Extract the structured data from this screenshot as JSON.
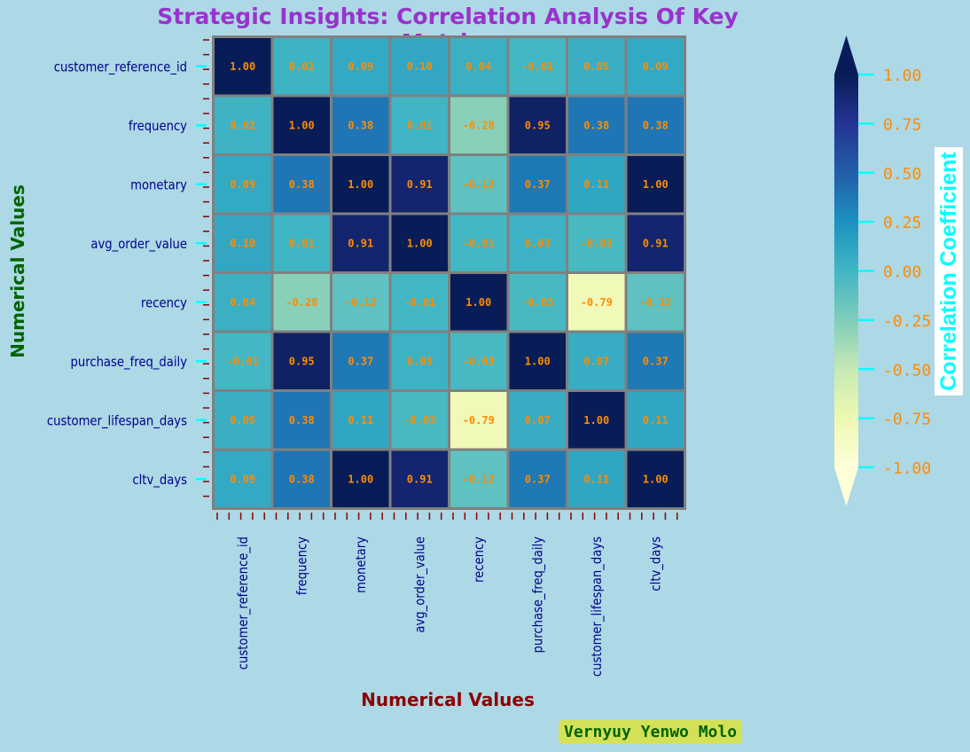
{
  "chart_data": {
    "type": "heatmap",
    "title": "Strategic Insights: Correlation Analysis Of Key Metrics",
    "xlabel": "Numerical Values",
    "ylabel": "Numerical Values",
    "categories": [
      "customer_reference_id",
      "frequency",
      "monetary",
      "avg_order_value",
      "recency",
      "purchase_freq_daily",
      "customer_lifespan_days",
      "cltv_days"
    ],
    "matrix": [
      [
        1.0,
        0.02,
        0.09,
        0.1,
        0.04,
        -0.01,
        0.05,
        0.09
      ],
      [
        0.02,
        1.0,
        0.38,
        0.01,
        -0.28,
        0.95,
        0.38,
        0.38
      ],
      [
        0.09,
        0.38,
        1.0,
        0.91,
        -0.12,
        0.37,
        0.11,
        1.0
      ],
      [
        0.1,
        0.01,
        0.91,
        1.0,
        -0.01,
        0.03,
        -0.03,
        0.91
      ],
      [
        0.04,
        -0.28,
        -0.12,
        -0.01,
        1.0,
        -0.03,
        -0.79,
        -0.12
      ],
      [
        -0.01,
        0.95,
        0.37,
        0.03,
        -0.03,
        1.0,
        0.07,
        0.37
      ],
      [
        0.05,
        0.38,
        0.11,
        -0.03,
        -0.79,
        0.07,
        1.0,
        0.11
      ],
      [
        0.09,
        0.38,
        1.0,
        0.91,
        -0.12,
        0.37,
        0.11,
        1.0
      ]
    ],
    "colorbar": {
      "label": "Correlation Coefficient",
      "range": [
        -1.0,
        1.0
      ],
      "ticks": [
        1.0,
        0.75,
        0.5,
        0.25,
        0.0,
        -0.25,
        -0.5,
        -0.75,
        -1.0
      ],
      "colormap": "YlGnBu"
    },
    "colors": {
      "background": "#add8e6",
      "annotation": "#ff8c00",
      "cell_border": "#808080",
      "tick_label": "#00008b",
      "tick_mark": "#00ffff",
      "minor_tick": "#8b0000",
      "cbar_tick_label": "#ff8c00"
    },
    "grid": false
  },
  "credit": "Vernyuy Yenwo Molo"
}
